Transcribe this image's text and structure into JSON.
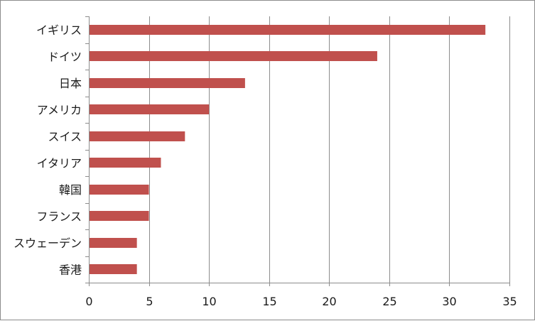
{
  "chart_data": {
    "type": "bar",
    "orientation": "horizontal",
    "title": "",
    "xlabel": "",
    "ylabel": "",
    "categories": [
      "イギリス",
      "ドイツ",
      "日本",
      "アメリカ",
      "スイス",
      "イタリア",
      "韓国",
      "フランス",
      "スウェーデン",
      "香港"
    ],
    "values": [
      33,
      24,
      13,
      10,
      8,
      6,
      5,
      5,
      4,
      4
    ],
    "xlim": [
      0,
      35
    ],
    "xticks": [
      "0",
      "5",
      "10",
      "15",
      "20",
      "25",
      "30",
      "35"
    ],
    "grid": "vertical",
    "legend": "none",
    "bar_color": "#c0504d",
    "grid_color": "#8c8c8c",
    "axis_color": "#8c8c8c"
  }
}
